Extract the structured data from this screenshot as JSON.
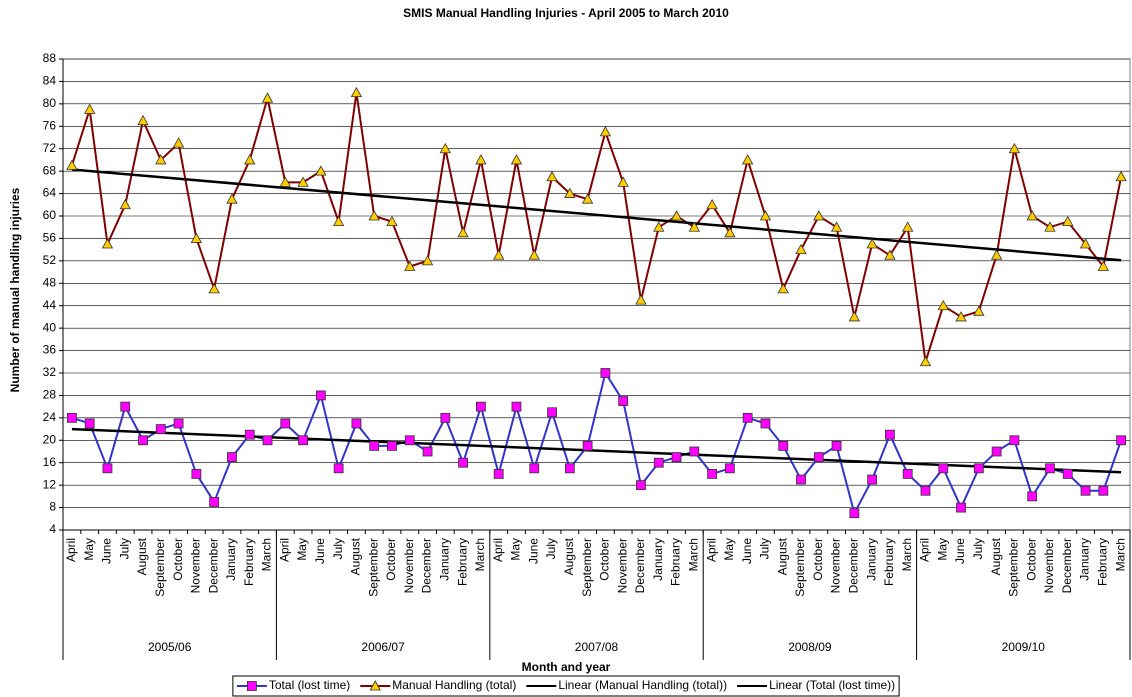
{
  "chart_data": {
    "type": "line",
    "title": "SMIS Manual Handling Injuries - April 2005 to March 2010",
    "x_label": "Month and year",
    "y_label": "Number of manual handling injuries",
    "categories": [
      "April",
      "May",
      "June",
      "July",
      "August",
      "September",
      "October",
      "November",
      "December",
      "January",
      "February",
      "March",
      "April",
      "May",
      "June",
      "July",
      "August",
      "September",
      "October",
      "November",
      "December",
      "January",
      "February",
      "March",
      "April",
      "May",
      "June",
      "July",
      "August",
      "September",
      "October",
      "November",
      "December",
      "January",
      "February",
      "March",
      "April",
      "May",
      "June",
      "July",
      "August",
      "September",
      "October",
      "November",
      "December",
      "January",
      "February",
      "March",
      "April",
      "May",
      "June",
      "July",
      "August",
      "September",
      "October",
      "November",
      "December",
      "January",
      "February",
      "March"
    ],
    "groups": [
      "2005/06",
      "2006/07",
      "2007/08",
      "2008/09",
      "2009/10"
    ],
    "series": [
      {
        "name": "Total (lost time)",
        "color": "#3333cc",
        "marker": "square",
        "marker_color": "#ff00ff",
        "values": [
          24,
          23,
          15,
          26,
          20,
          22,
          23,
          14,
          9,
          17,
          21,
          20,
          23,
          20,
          28,
          15,
          23,
          19,
          19,
          20,
          18,
          24,
          16,
          26,
          14,
          26,
          15,
          25,
          15,
          19,
          32,
          27,
          12,
          16,
          17,
          18,
          14,
          15,
          24,
          23,
          19,
          13,
          17,
          19,
          7,
          13,
          21,
          14,
          11,
          15,
          8,
          15,
          18,
          20,
          10,
          15,
          14,
          11,
          11,
          20
        ]
      },
      {
        "name": "Manual Handling (total)",
        "color": "#800000",
        "marker": "triangle",
        "marker_color": "#ffcc00",
        "values": [
          69,
          79,
          55,
          62,
          77,
          70,
          73,
          56,
          47,
          63,
          70,
          81,
          66,
          66,
          68,
          59,
          82,
          60,
          59,
          51,
          52,
          72,
          57,
          70,
          53,
          70,
          53,
          67,
          64,
          63,
          75,
          66,
          45,
          58,
          60,
          58,
          62,
          57,
          70,
          60,
          47,
          54,
          60,
          58,
          42,
          55,
          53,
          58,
          34,
          44,
          42,
          43,
          53,
          72,
          60,
          58,
          59,
          55,
          51,
          67
        ]
      }
    ],
    "trendlines": [
      {
        "name": "Linear (Manual Handling (total))",
        "color": "#000000",
        "values": [
          68.3,
          52.1
        ]
      },
      {
        "name": "Linear (Total (lost time))",
        "color": "#000000",
        "values": [
          22,
          14.3
        ]
      }
    ],
    "ylim": [
      4,
      88
    ],
    "yticks": [
      4,
      8,
      12,
      16,
      20,
      24,
      28,
      32,
      36,
      40,
      44,
      48,
      52,
      56,
      60,
      64,
      68,
      72,
      76,
      80,
      84,
      88
    ],
    "grid": true,
    "legend": "bottom"
  }
}
